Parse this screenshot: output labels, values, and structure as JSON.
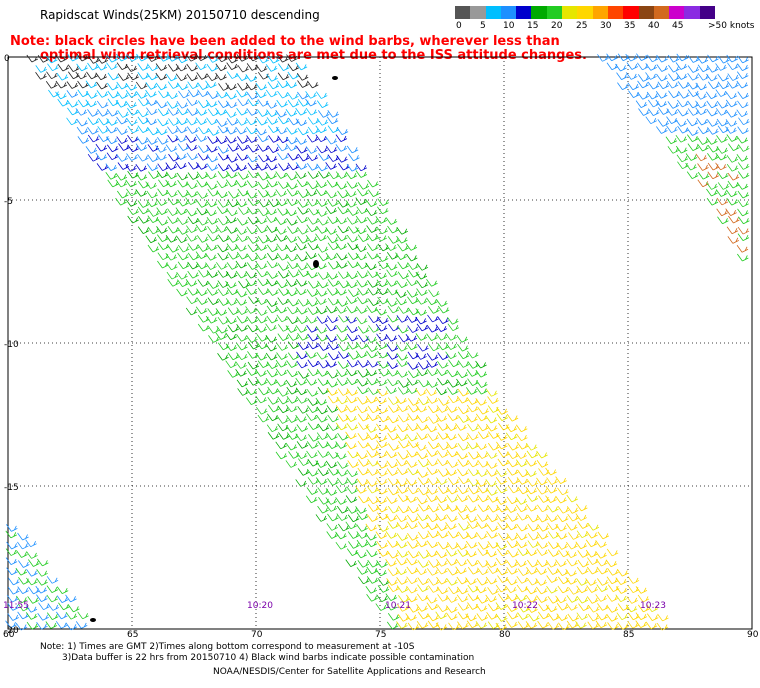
{
  "title": "Rapidscat Winds(25KM) 20150710 descending",
  "note": {
    "line1": "Note: black circles have been added to the wind barbs, wherever less than",
    "line2": "optimal wind retrieval conditions are met due to the ISS attitude changes."
  },
  "legend": {
    "colors": [
      "#555555",
      "#999999",
      "#00bfff",
      "#1e90ff",
      "#0000cd",
      "#00aa00",
      "#22cc22",
      "#e6e600",
      "#ffd700",
      "#ffa500",
      "#ff4500",
      "#ff0000",
      "#8b4513",
      "#d2691e",
      "#cc00cc",
      "#8a2be2",
      "#440088"
    ],
    "labels": [
      "0",
      "5",
      "10",
      "15",
      "20",
      "25",
      "30",
      "35",
      "40",
      "45",
      ">50 knots"
    ]
  },
  "axes": {
    "y_labels": [
      "0",
      "-5",
      "-10",
      "-15",
      "-20"
    ],
    "x_labels": [
      "60",
      "65",
      "70",
      "75",
      "80",
      "85",
      "90"
    ]
  },
  "times": [
    "11:55",
    "10:20",
    "10:21",
    "10:22",
    "10:23"
  ],
  "footer": {
    "line1": "Note: 1) Times are GMT 2)Times along bottom correspond to measurement at -10S",
    "line2": "3)Data buffer is 22 hrs from 20150710 4) Black wind barbs indicate possible contamination",
    "line3": "NOAA/NESDIS/Center for Satellite Applications and Research"
  }
}
